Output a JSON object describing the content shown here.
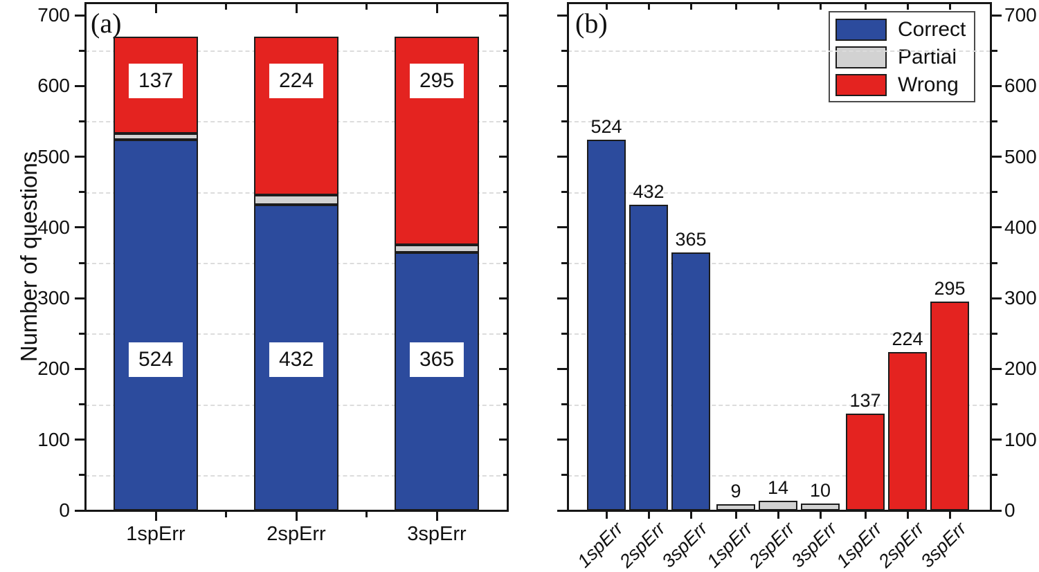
{
  "figure": {
    "panel_a_letter": "(a)",
    "panel_b_letter": "(b)",
    "y_axis_title": "Number of questions"
  },
  "chart_data": [
    {
      "type": "bar",
      "stacked": true,
      "title": "(a)",
      "categories": [
        "1spErr",
        "2spErr",
        "3spErr"
      ],
      "series": [
        {
          "name": "Correct",
          "color": "#2c4b9d",
          "values": [
            524,
            432,
            365
          ]
        },
        {
          "name": "Partial",
          "color": "#d2d2d2",
          "values": [
            9,
            14,
            10
          ]
        },
        {
          "name": "Wrong",
          "color": "#e42320",
          "values": [
            137,
            224,
            295
          ]
        }
      ],
      "bar_totals": [
        670,
        670,
        670
      ],
      "segment_labels": {
        "Correct": [
          "524",
          "432",
          "365"
        ],
        "Wrong": [
          "137",
          "224",
          "295"
        ]
      },
      "xlabel": "",
      "ylabel": "Number of questions",
      "ylim": [
        0,
        700
      ],
      "ytick_major": 100,
      "ytick_minor": 50,
      "yaxis_side": "left",
      "grid": "horizontal dashed lines at minor ticks (50,150,250,350,450,550,650)"
    },
    {
      "type": "bar",
      "stacked": false,
      "title": "(b)",
      "categories": [
        "1spErr",
        "2spErr",
        "3spErr",
        "1spErr",
        "2spErr",
        "3spErr",
        "1spErr",
        "2spErr",
        "3spErr"
      ],
      "series": [
        {
          "name": "Correct",
          "color": "#2c4b9d",
          "values": [
            524,
            432,
            365
          ]
        },
        {
          "name": "Partial",
          "color": "#d2d2d2",
          "values": [
            9,
            14,
            10
          ]
        },
        {
          "name": "Wrong",
          "color": "#e42320",
          "values": [
            137,
            224,
            295
          ]
        }
      ],
      "bar_value_labels": [
        "524",
        "432",
        "365",
        "9",
        "14",
        "10",
        "137",
        "224",
        "295"
      ],
      "ylim": [
        0,
        700
      ],
      "ytick_major": 100,
      "ytick_minor": 50,
      "yaxis_side": "right",
      "grid": "horizontal dashed lines at minor ticks (50,150,250,350,450,550,650)",
      "legend": {
        "position": "top-right",
        "entries": [
          "Correct",
          "Partial",
          "Wrong"
        ]
      }
    }
  ]
}
